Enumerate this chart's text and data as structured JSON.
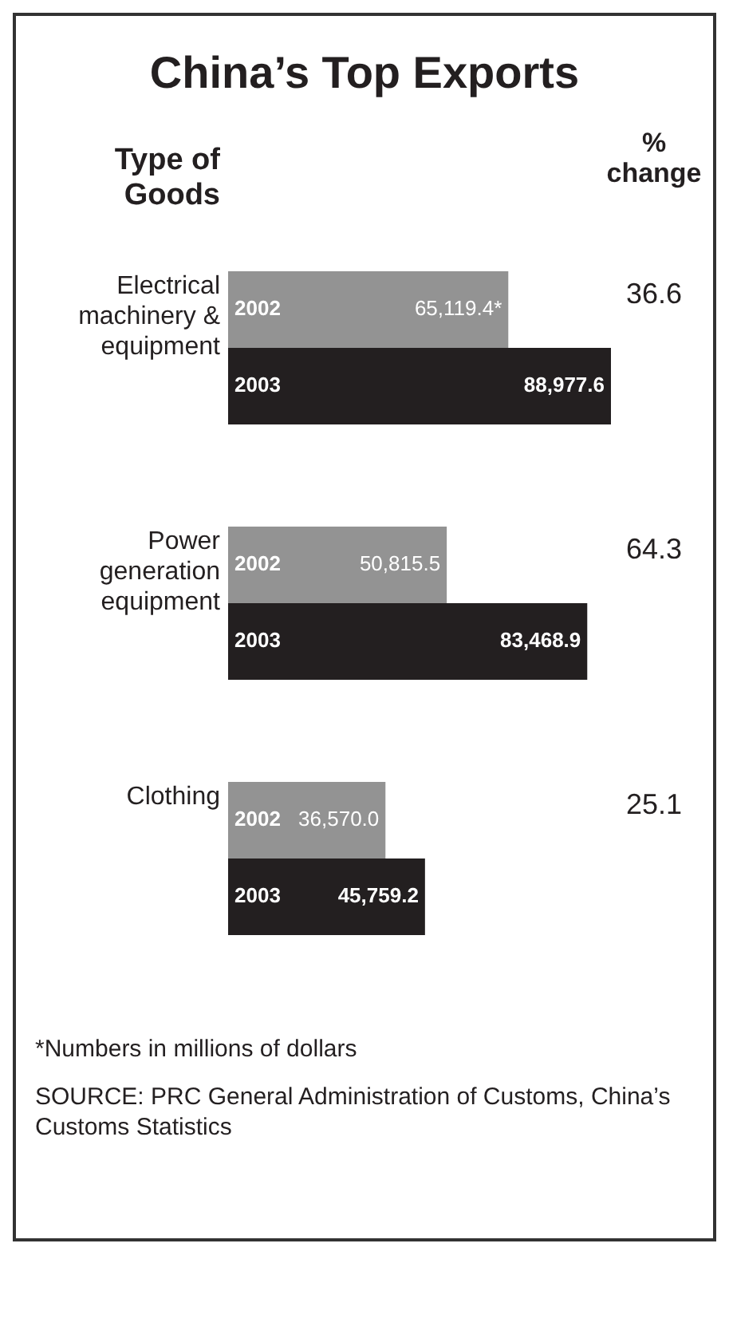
{
  "chart_data": {
    "type": "bar",
    "orientation": "horizontal",
    "title": "China’s Top Exports",
    "ylabel": "Type of Goods",
    "categories": [
      "Electrical machinery & equipment",
      "Power generation equipment",
      "Clothing"
    ],
    "series": [
      {
        "name": "2002",
        "color": "#939393",
        "values": [
          65119.4,
          50815.5,
          36570.0
        ],
        "value_labels": [
          "65,119.4*",
          "50,815.5",
          "36,570.0"
        ]
      },
      {
        "name": "2003",
        "color": "#231f20",
        "values": [
          88977.6,
          83468.9,
          45759.2
        ],
        "value_labels": [
          "88,977.6",
          "83,468.9",
          "45,759.2"
        ]
      }
    ],
    "annotations": [
      "% change",
      "36.6",
      "64.3",
      "25.1",
      "*Numbers in millions of dollars",
      "SOURCE: PRC General Administration of Customs, China’s Customs Statistics"
    ],
    "tick_labels": false
  }
}
